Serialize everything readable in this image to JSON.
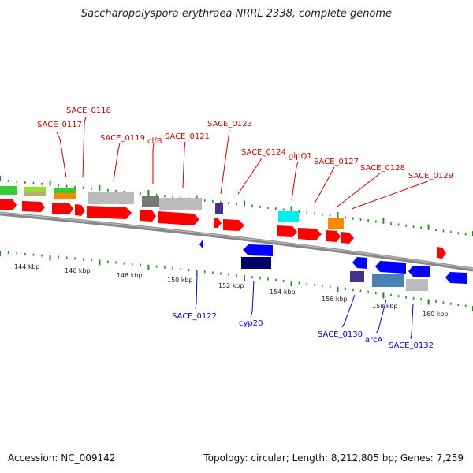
{
  "title": "Saccharopolyspora erythraea NRRL 2338, complete genome",
  "footer": {
    "accession": "Accession: NC_009142",
    "summary": "Topology: circular; Length: 8,212,805 bp; Genes: 7,259"
  },
  "colors": {
    "forward_label": "#cc0000",
    "reverse_label": "#0000cc",
    "cds_forward": "#ff0000",
    "cds_reverse": "#0000ff",
    "backbone": "#888888",
    "tick": "#228b22"
  },
  "kbp_ticks": [
    "144 kbp",
    "146 kbp",
    "148 kbp",
    "150 kbp",
    "152 kbp",
    "154 kbp",
    "156 kbp",
    "158 kbp",
    "160 kbp"
  ],
  "forward_labels": [
    "SACE_0117",
    "SACE_0118",
    "SACE_0119",
    "clfB",
    "SACE_0121",
    "SACE_0123",
    "SACE_0124",
    "glpQ1",
    "SACE_0127",
    "SACE_0128",
    "SACE_0129"
  ],
  "reverse_labels": [
    "SACE_0122",
    "cyp20",
    "SACE_0130",
    "arcA",
    "SACE_0132"
  ]
}
